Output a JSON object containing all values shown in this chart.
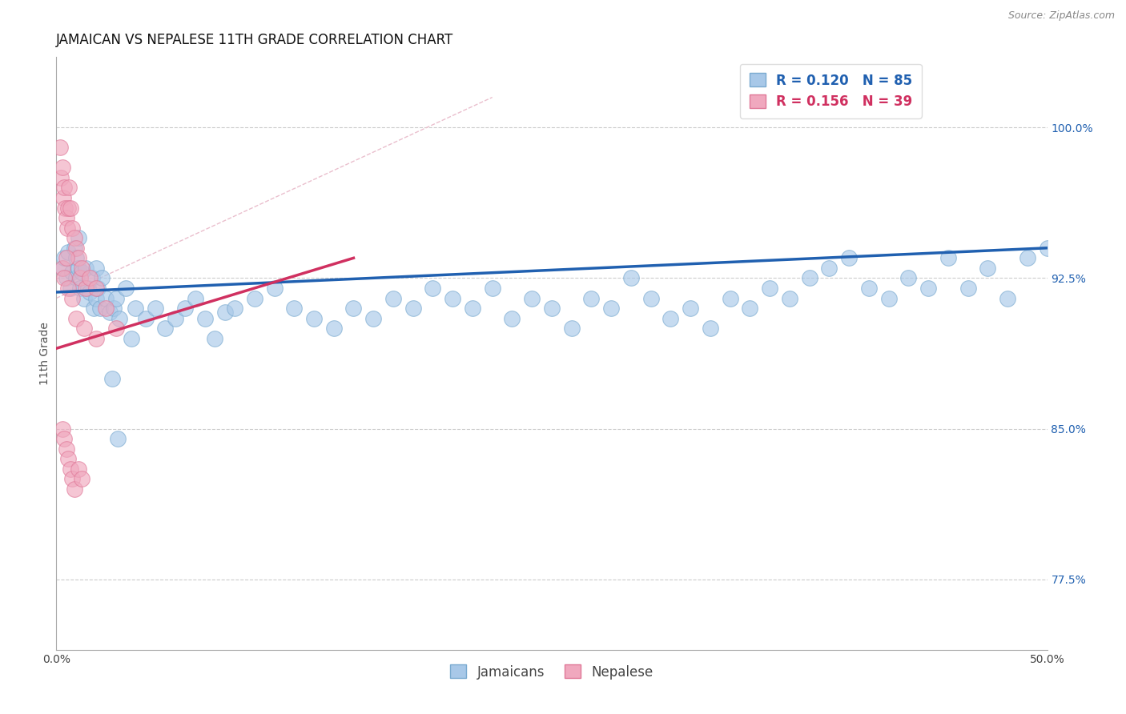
{
  "title": "JAMAICAN VS NEPALESE 11TH GRADE CORRELATION CHART",
  "source_text": "Source: ZipAtlas.com",
  "ylabel": "11th Grade",
  "xlim": [
    0.0,
    50.0
  ],
  "ylim": [
    74.0,
    103.5
  ],
  "right_yticks": [
    77.5,
    85.0,
    92.5,
    100.0
  ],
  "legend_r_blue": "R = 0.120",
  "legend_n_blue": "N = 85",
  "legend_r_pink": "R = 0.156",
  "legend_n_pink": "N = 39",
  "blue_color": "#a8c8e8",
  "pink_color": "#f0a8be",
  "blue_edge_color": "#7aaad0",
  "pink_edge_color": "#e07898",
  "blue_line_color": "#2060b0",
  "pink_line_color": "#d03060",
  "diag_line_color": "#e8b8c8",
  "legend_box_blue": "#a8c8e8",
  "legend_box_pink": "#f0a8be",
  "jamaican_scatter_x": [
    0.3,
    0.4,
    0.5,
    0.6,
    0.7,
    0.8,
    0.9,
    1.0,
    1.0,
    1.1,
    1.1,
    1.2,
    1.3,
    1.4,
    1.5,
    1.6,
    1.7,
    1.8,
    1.9,
    2.0,
    2.0,
    2.1,
    2.2,
    2.3,
    2.5,
    2.7,
    2.9,
    3.0,
    3.2,
    3.5,
    3.8,
    4.0,
    4.5,
    5.0,
    5.5,
    6.0,
    6.5,
    7.0,
    7.5,
    8.0,
    8.5,
    9.0,
    10.0,
    11.0,
    12.0,
    13.0,
    14.0,
    15.0,
    16.0,
    17.0,
    18.0,
    19.0,
    20.0,
    21.0,
    22.0,
    23.0,
    24.0,
    25.0,
    26.0,
    27.0,
    28.0,
    29.0,
    30.0,
    31.0,
    32.0,
    33.0,
    34.0,
    35.0,
    36.0,
    37.0,
    38.0,
    39.0,
    40.0,
    41.0,
    42.0,
    43.0,
    44.0,
    45.0,
    46.0,
    47.0,
    48.0,
    49.0,
    50.0,
    2.8,
    3.1
  ],
  "jamaican_scatter_y": [
    93.0,
    93.5,
    92.5,
    93.8,
    92.0,
    92.8,
    94.0,
    93.5,
    92.5,
    93.0,
    94.5,
    92.0,
    92.8,
    91.5,
    93.0,
    92.0,
    91.8,
    92.5,
    91.0,
    93.0,
    91.5,
    92.0,
    91.0,
    92.5,
    91.5,
    90.8,
    91.0,
    91.5,
    90.5,
    92.0,
    89.5,
    91.0,
    90.5,
    91.0,
    90.0,
    90.5,
    91.0,
    91.5,
    90.5,
    89.5,
    90.8,
    91.0,
    91.5,
    92.0,
    91.0,
    90.5,
    90.0,
    91.0,
    90.5,
    91.5,
    91.0,
    92.0,
    91.5,
    91.0,
    92.0,
    90.5,
    91.5,
    91.0,
    90.0,
    91.5,
    91.0,
    92.5,
    91.5,
    90.5,
    91.0,
    90.0,
    91.5,
    91.0,
    92.0,
    91.5,
    92.5,
    93.0,
    93.5,
    92.0,
    91.5,
    92.5,
    92.0,
    93.5,
    92.0,
    93.0,
    91.5,
    93.5,
    94.0,
    87.5,
    84.5
  ],
  "nepalese_scatter_x": [
    0.2,
    0.25,
    0.3,
    0.35,
    0.4,
    0.45,
    0.5,
    0.55,
    0.6,
    0.65,
    0.7,
    0.8,
    0.9,
    1.0,
    1.1,
    1.2,
    1.3,
    1.5,
    1.7,
    2.0,
    2.5,
    3.0,
    0.3,
    0.4,
    0.5,
    0.6,
    0.8,
    1.0,
    1.4,
    2.0,
    0.3,
    0.4,
    0.5,
    0.6,
    0.7,
    0.8,
    0.9,
    1.1,
    1.3
  ],
  "nepalese_scatter_y": [
    99.0,
    97.5,
    98.0,
    96.5,
    97.0,
    96.0,
    95.5,
    95.0,
    96.0,
    97.0,
    96.0,
    95.0,
    94.5,
    94.0,
    93.5,
    92.5,
    93.0,
    92.0,
    92.5,
    92.0,
    91.0,
    90.0,
    93.0,
    92.5,
    93.5,
    92.0,
    91.5,
    90.5,
    90.0,
    89.5,
    85.0,
    84.5,
    84.0,
    83.5,
    83.0,
    82.5,
    82.0,
    83.0,
    82.5
  ],
  "blue_trend_x0": 0.0,
  "blue_trend_y0": 91.8,
  "blue_trend_x1": 50.0,
  "blue_trend_y1": 94.0,
  "pink_trend_x0": 0.0,
  "pink_trend_y0": 89.0,
  "pink_trend_x1": 15.0,
  "pink_trend_y1": 93.5,
  "diag_x0": 0.0,
  "diag_y0": 91.5,
  "diag_x1": 22.0,
  "diag_y1": 101.5,
  "title_fontsize": 12,
  "axis_label_fontsize": 10,
  "tick_fontsize": 10,
  "legend_fontsize": 12,
  "source_fontsize": 9
}
